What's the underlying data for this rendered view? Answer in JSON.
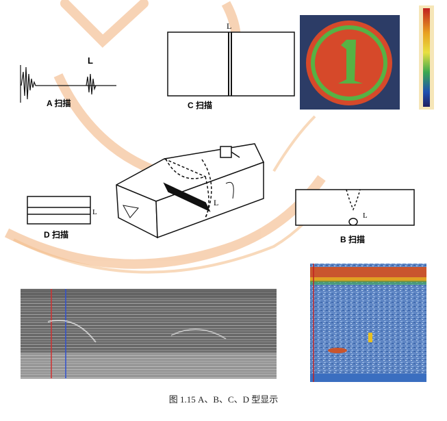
{
  "panels": {
    "a_scan": {
      "label": "A 扫描",
      "marker": "L"
    },
    "c_scan": {
      "label": "C 扫描",
      "marker": "L"
    },
    "d_scan": {
      "label": "D 扫描",
      "marker": "L"
    },
    "b_scan": {
      "label": "B 扫描",
      "marker": "L"
    },
    "block": {
      "marker": "L"
    }
  },
  "caption": "图 1.15 A、B、C、D 型显示",
  "colors": {
    "watermark": "#f0a35a",
    "coin_bg": "#2c3c66",
    "coin_ring": "#d6492a",
    "coin_inner": "#57b244",
    "bscan_bg": "#5f86c4",
    "bscan_top": "#c9552e",
    "line": "#111111"
  }
}
